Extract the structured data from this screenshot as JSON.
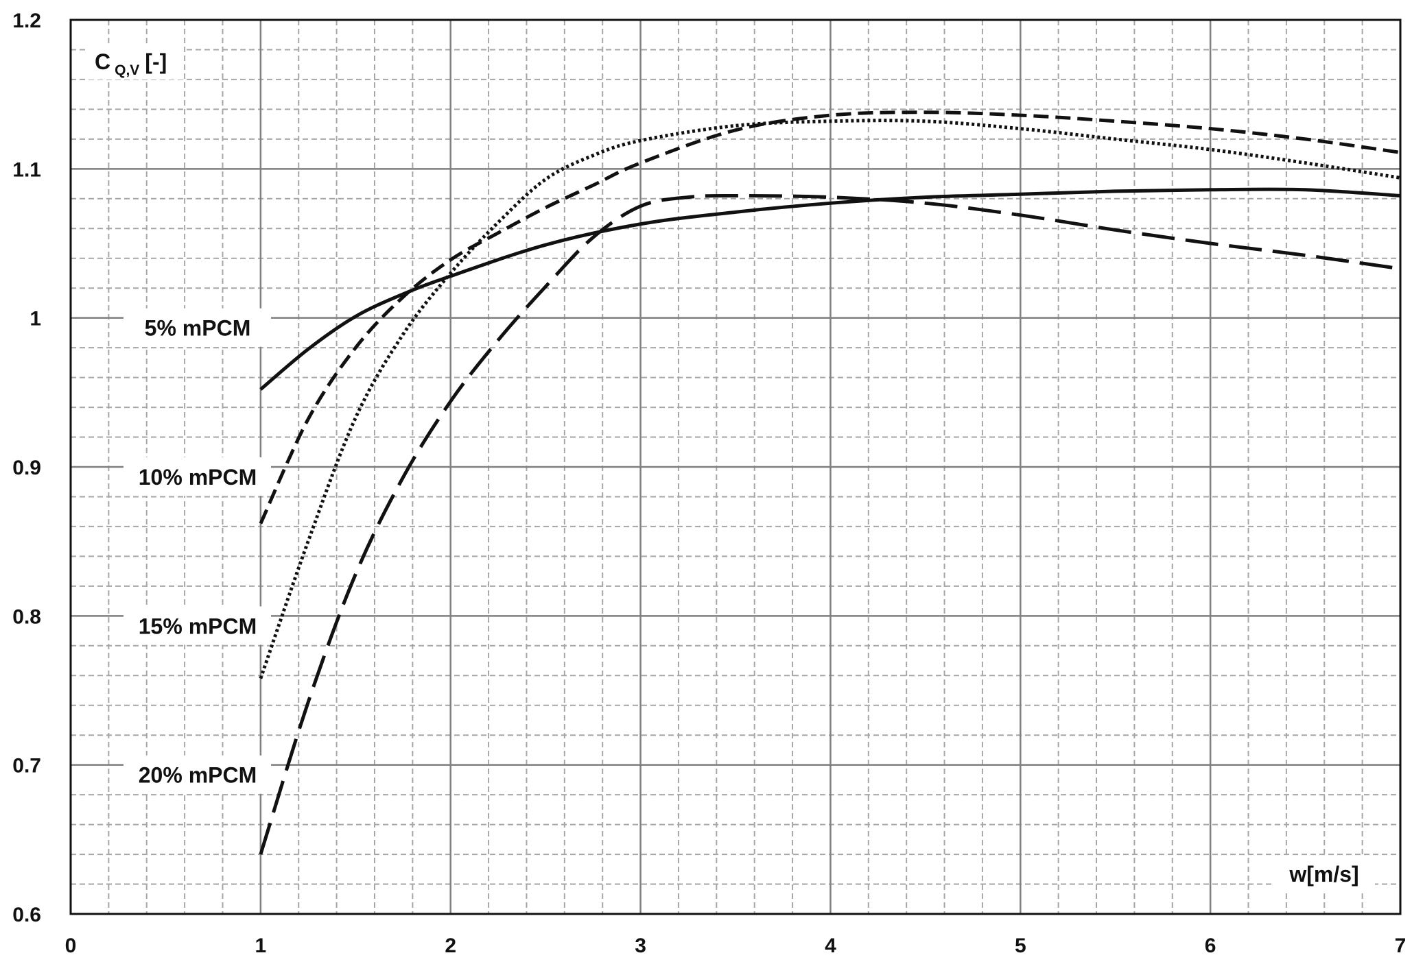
{
  "chart_data": {
    "type": "line",
    "title": "",
    "xlabel": "w[m/s]",
    "ylabel": {
      "main": "C",
      "sub": "Q,V",
      "unit": "[-]"
    },
    "xlim": [
      0,
      7
    ],
    "ylim": [
      0.6,
      1.2
    ],
    "x_ticks": [
      "0",
      "1",
      "2",
      "3",
      "4",
      "5",
      "6",
      "7"
    ],
    "y_ticks": [
      "0.6",
      "0.7",
      "0.8",
      "0.9",
      "1",
      "1.1",
      "1.2"
    ],
    "grid": {
      "major": true,
      "minor": true
    },
    "series": [
      {
        "name": "5% mPCM",
        "style": "solid",
        "x": [
          1.0,
          1.25,
          1.5,
          1.75,
          2.0,
          2.5,
          3.0,
          3.5,
          4.0,
          4.5,
          5.0,
          5.5,
          6.0,
          6.5,
          7.0
        ],
        "y": [
          0.952,
          0.979,
          1.001,
          1.016,
          1.028,
          1.049,
          1.063,
          1.071,
          1.077,
          1.081,
          1.083,
          1.085,
          1.086,
          1.086,
          1.082
        ]
      },
      {
        "name": "10% mPCM",
        "style": "dashed",
        "x": [
          1.0,
          1.25,
          1.5,
          1.75,
          2.0,
          2.25,
          2.5,
          2.75,
          3.0,
          3.5,
          4.0,
          4.5,
          5.0,
          5.5,
          6.0,
          6.5,
          7.0
        ],
        "y": [
          0.862,
          0.932,
          0.98,
          1.014,
          1.039,
          1.057,
          1.074,
          1.089,
          1.104,
          1.126,
          1.136,
          1.138,
          1.136,
          1.132,
          1.127,
          1.12,
          1.111
        ]
      },
      {
        "name": "15% mPCM",
        "style": "dotted",
        "x": [
          1.0,
          1.25,
          1.5,
          1.75,
          2.0,
          2.25,
          2.5,
          2.75,
          3.0,
          3.5,
          4.0,
          4.5,
          5.0,
          5.5,
          6.0,
          6.5,
          7.0
        ],
        "y": [
          0.758,
          0.85,
          0.933,
          0.989,
          1.03,
          1.064,
          1.093,
          1.109,
          1.119,
          1.129,
          1.132,
          1.132,
          1.127,
          1.12,
          1.113,
          1.104,
          1.094
        ]
      },
      {
        "name": "20% mPCM",
        "style": "long-dash",
        "x": [
          1.0,
          1.25,
          1.5,
          1.75,
          2.0,
          2.25,
          2.5,
          2.75,
          3.0,
          3.25,
          3.5,
          4.0,
          4.5,
          5.0,
          5.5,
          6.0,
          6.5,
          7.0
        ],
        "y": [
          0.64,
          0.742,
          0.828,
          0.893,
          0.944,
          0.985,
          1.021,
          1.054,
          1.075,
          1.081,
          1.082,
          1.081,
          1.077,
          1.069,
          1.059,
          1.05,
          1.042,
          1.033
        ]
      }
    ]
  }
}
